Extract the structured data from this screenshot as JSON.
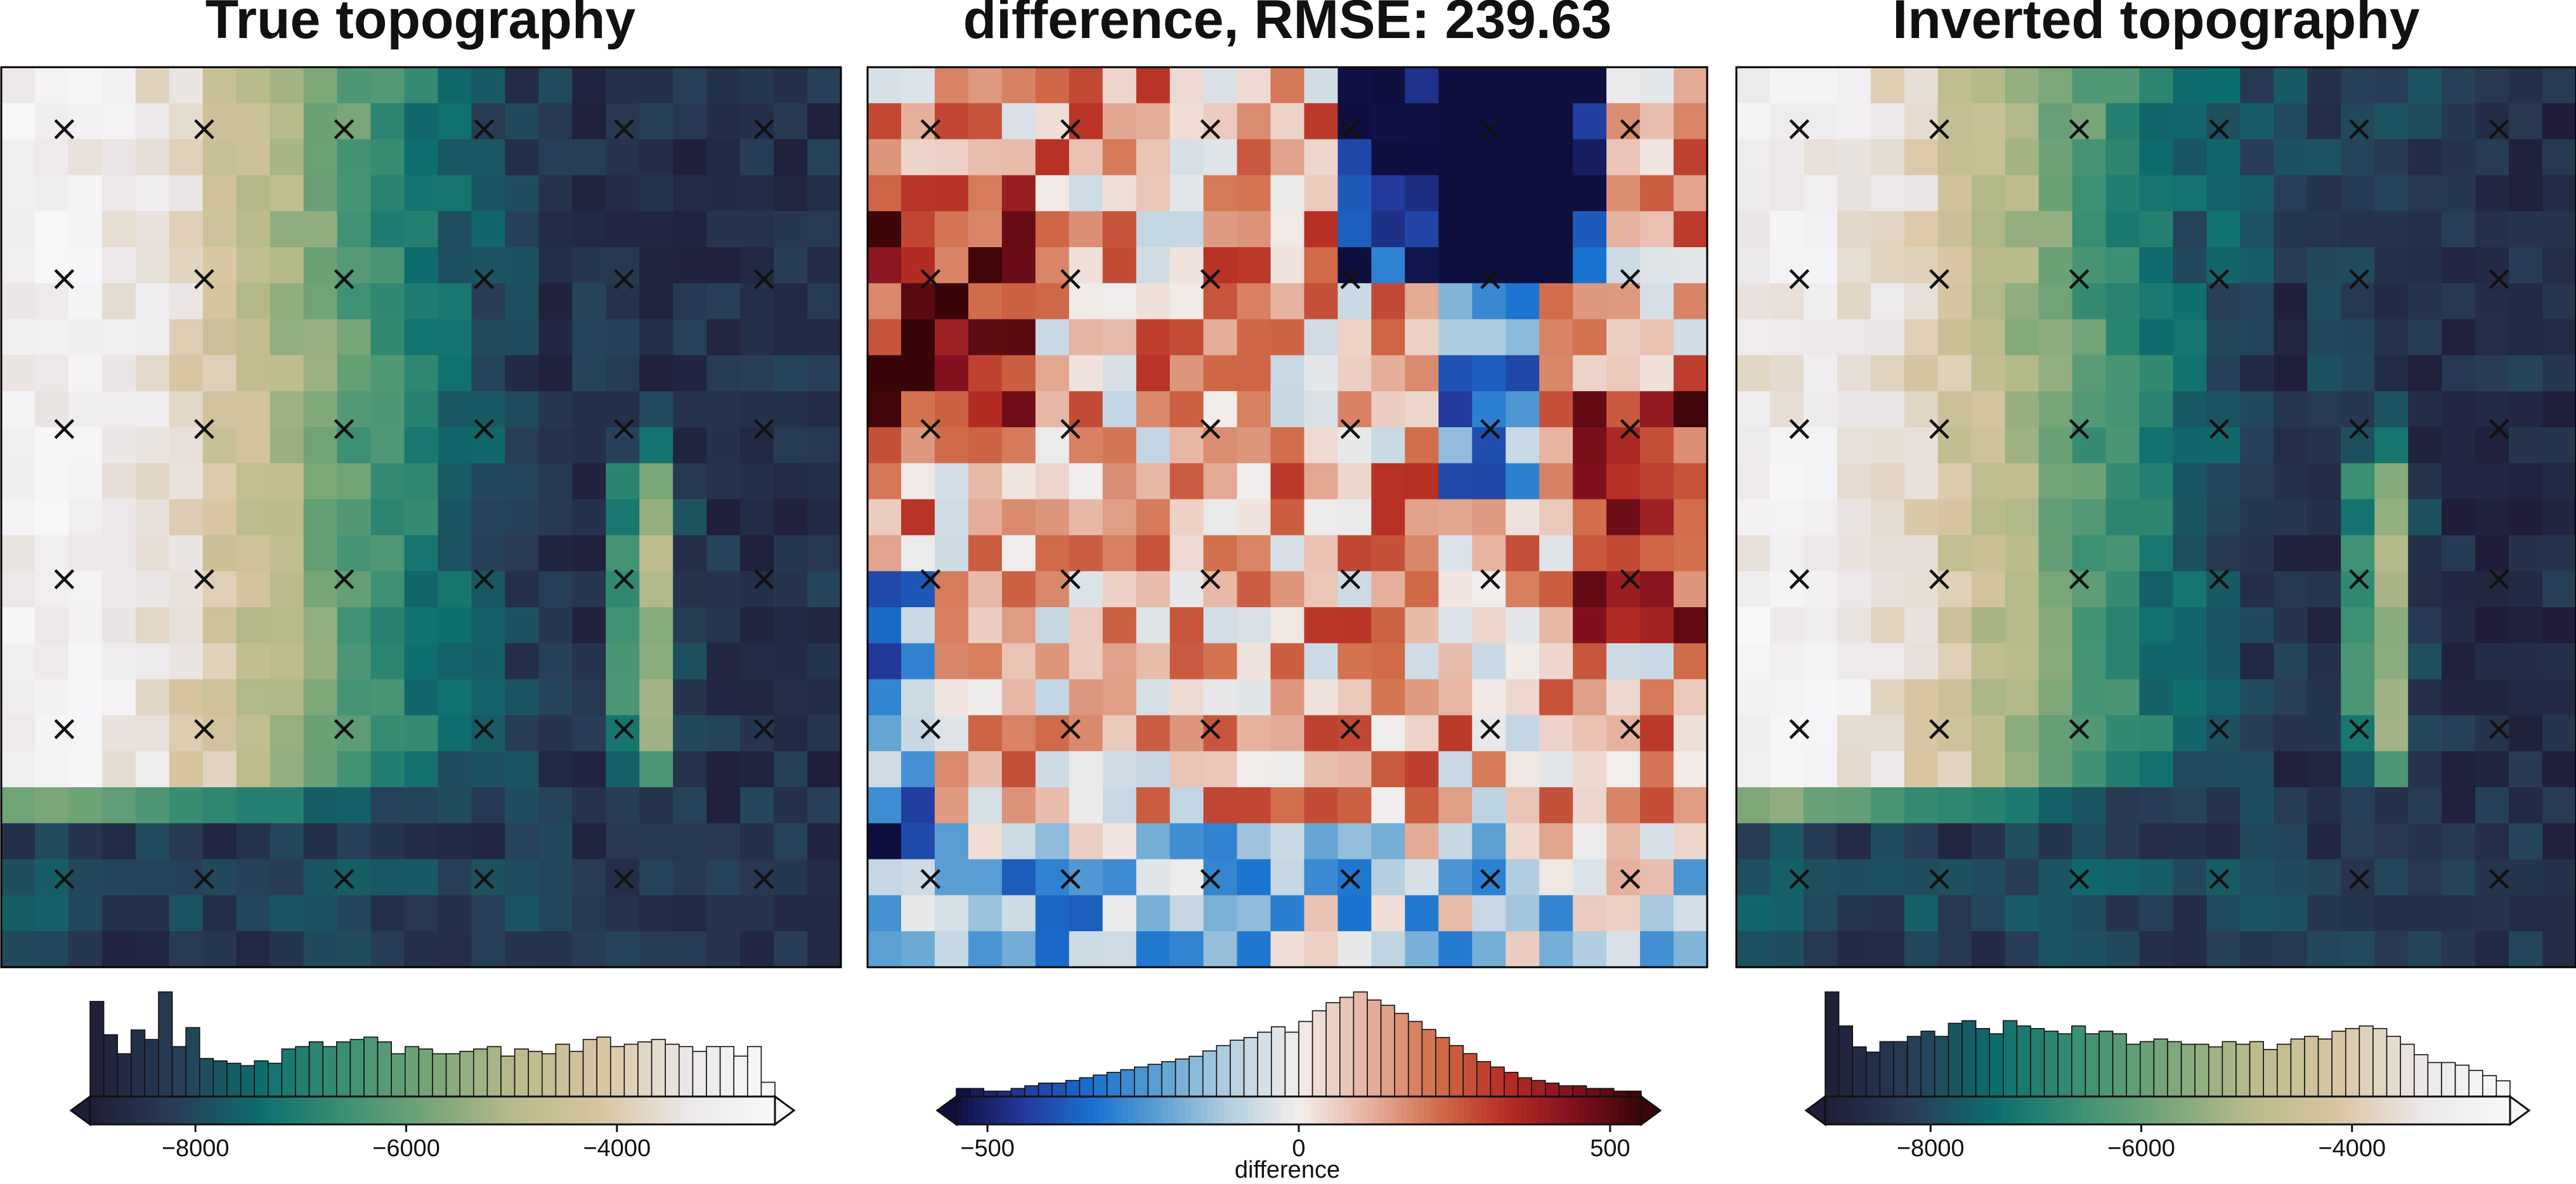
{
  "figure": {
    "panels": [
      {
        "id": "true",
        "title": "True topography",
        "colormap": "topo-earth",
        "colorbar_label": ""
      },
      {
        "id": "diff",
        "title": "difference, RMSE: 239.63",
        "colormap": "balance",
        "colorbar_label": "difference"
      },
      {
        "id": "inv",
        "title": "Inverted topography",
        "colormap": "topo-earth",
        "colorbar_label": ""
      }
    ],
    "colormaps": {
      "topo-earth": [
        "#1f1d37",
        "#283d55",
        "#0d6e6e",
        "#3d9173",
        "#79a678",
        "#bbbb8c",
        "#d9c6a3",
        "#ece8ea",
        "#f8f8fb"
      ],
      "balance": [
        "#0f0f3f",
        "#233a9c",
        "#1872d0",
        "#5fa2d3",
        "#b6cfe0",
        "#f2eeec",
        "#e6b3a0",
        "#d26f4c",
        "#b72f25",
        "#82101e",
        "#3a0508"
      ]
    }
  },
  "chart_data": [
    {
      "type": "heatmap",
      "title": "True topography",
      "grid": "25 x 25 cells",
      "value_range": [
        -9000,
        -2500
      ],
      "pattern": "high plateau (-3000) on west, descending east through green slopes to deep basin (-8500) along south and east, narrow ridge near east edge",
      "colorbar": {
        "ticks": [
          -8000,
          -6000,
          -4000
        ],
        "range": [
          -9000,
          -2500
        ],
        "extend": "both"
      },
      "histogram_counts": [
        40,
        26,
        18,
        28,
        24,
        44,
        21,
        29,
        16,
        15,
        14,
        13,
        15,
        14,
        20,
        21,
        23,
        21,
        23,
        24,
        25,
        23,
        18,
        21,
        20,
        18,
        18,
        19,
        20,
        21,
        17,
        20,
        19,
        18,
        22,
        19,
        24,
        25,
        21,
        22,
        23,
        24,
        22,
        21,
        19,
        21,
        21,
        17,
        21,
        6
      ],
      "markers": {
        "symbol": "×",
        "columns": 6,
        "rows": 6
      }
    },
    {
      "type": "heatmap",
      "title": "difference, RMSE: 239.63",
      "grid": "25 x 25 cells",
      "value_range": [
        -550,
        550
      ],
      "pattern": "positive (red) errors across centre and east, negative (blue) errors along south edge and north-east corner",
      "colorbar": {
        "ticks": [
          -500,
          0,
          500
        ],
        "range": [
          -550,
          550
        ],
        "label": "difference",
        "extend": "both"
      },
      "histogram_counts": [
        3,
        3,
        2,
        2,
        3,
        4,
        5,
        5,
        6,
        7,
        8,
        9,
        10,
        11,
        12,
        13,
        14,
        15,
        17,
        19,
        21,
        22,
        24,
        26,
        24,
        28,
        32,
        35,
        37,
        39,
        36,
        34,
        31,
        28,
        25,
        22,
        19,
        16,
        13,
        11,
        9,
        7,
        6,
        5,
        4,
        4,
        3,
        3,
        2,
        2
      ],
      "markers": {
        "symbol": "×",
        "columns": 6,
        "rows": 6
      }
    },
    {
      "type": "heatmap",
      "title": "Inverted topography",
      "grid": "25 x 25 cells",
      "value_range": [
        -9000,
        -2500
      ],
      "pattern": "same structure as true topography with smoother transitions",
      "colorbar": {
        "ticks": [
          -8000,
          -6000,
          -4000
        ],
        "range": [
          -9000,
          -2500
        ],
        "extend": "both"
      },
      "histogram_counts": [
        40,
        27,
        19,
        17,
        21,
        21,
        23,
        25,
        23,
        28,
        29,
        26,
        24,
        29,
        27,
        26,
        25,
        24,
        27,
        24,
        25,
        24,
        20,
        21,
        22,
        21,
        20,
        20,
        19,
        21,
        20,
        21,
        18,
        20,
        22,
        23,
        22,
        25,
        26,
        27,
        26,
        23,
        20,
        16,
        13,
        13,
        12,
        10,
        8,
        6
      ],
      "markers": {
        "symbol": "×",
        "columns": 6,
        "rows": 6
      }
    }
  ]
}
